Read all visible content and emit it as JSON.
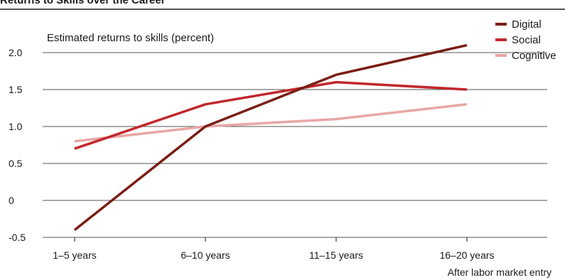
{
  "chart_data": {
    "type": "line",
    "title": "Returns to Skills over the Career",
    "ylabel": "Estimated returns to skills (percent)",
    "xlabel": "After labor market entry",
    "categories": [
      "1–5 years",
      "6–10 years",
      "11–15 years",
      "16–20 years"
    ],
    "y_ticks": [
      "-0.5",
      "0",
      "0.5",
      "1.0",
      "1.5",
      "2.0"
    ],
    "y_tick_values": [
      -0.5,
      0,
      0.5,
      1.0,
      1.5,
      2.0
    ],
    "ylim": [
      -0.5,
      2.0
    ],
    "grid": true,
    "legend_position": "top-right",
    "series": [
      {
        "name": "Digital",
        "color": "#7a1e15",
        "values": [
          -0.4,
          1.0,
          1.7,
          2.1
        ]
      },
      {
        "name": "Social",
        "color": "#c1272d",
        "values": [
          0.7,
          1.3,
          1.6,
          1.5
        ]
      },
      {
        "name": "Cognitive",
        "color": "#e8a6a6",
        "values": [
          0.8,
          1.0,
          1.1,
          1.3
        ]
      }
    ]
  }
}
